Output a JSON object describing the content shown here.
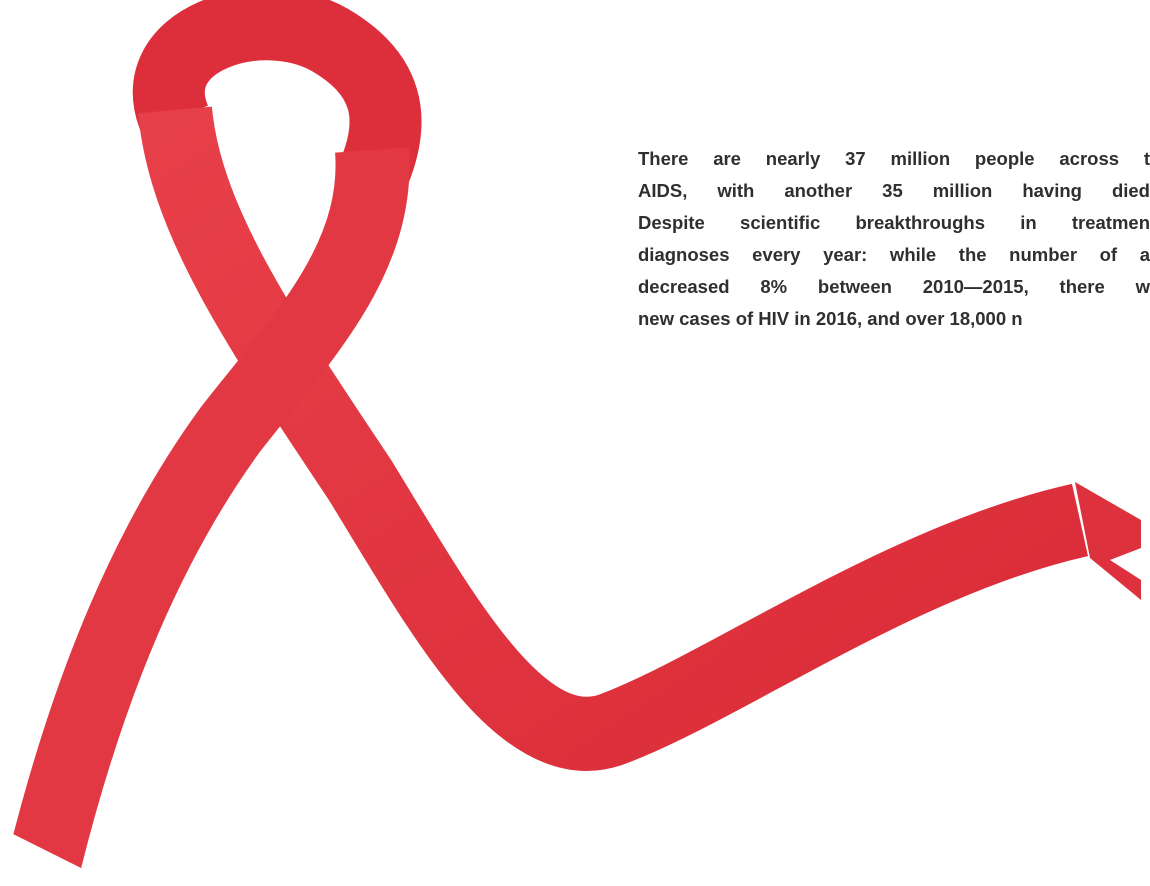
{
  "paragraph": {
    "lines": [
      "There are nearly 37 million people across t",
      "AIDS, with another 35 million having died",
      "Despite scientific breakthroughs in treatmen",
      "diagnoses every year: while the number of a",
      "decreased 8% between 2010—2015, there w",
      "new cases of HIV in 2016, and over 18,000 n"
    ]
  }
}
